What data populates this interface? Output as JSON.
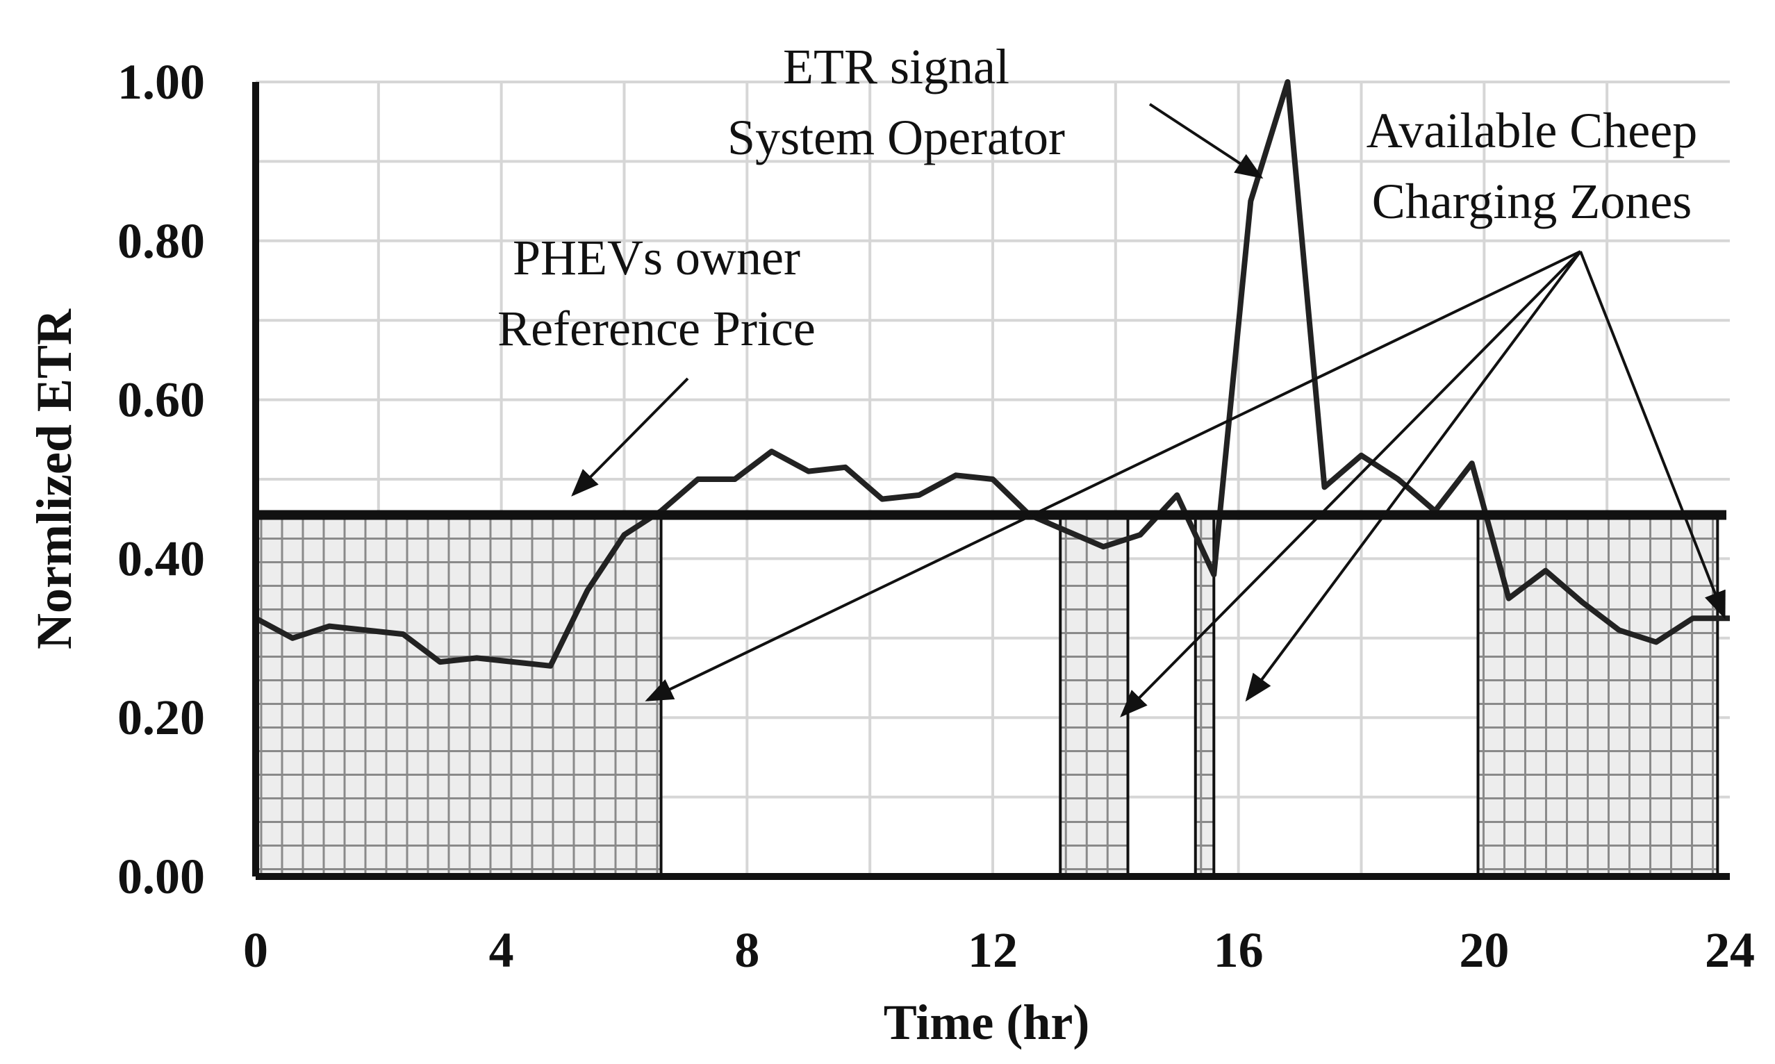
{
  "chart_data": {
    "type": "line",
    "xlabel": "Time  (hr)",
    "ylabel": "Normlized  ETR",
    "xlim": [
      0,
      24
    ],
    "ylim": [
      0,
      1.0
    ],
    "x_ticks": [
      "0",
      "4",
      "8",
      "12",
      "16",
      "20",
      "24"
    ],
    "y_ticks": [
      "0.00",
      "0.20",
      "0.40",
      "0.60",
      "0.80",
      "1.00"
    ],
    "grid": true,
    "series": [
      {
        "x": [
          0,
          0.6,
          1.2,
          1.8,
          2.4,
          3.0,
          3.6,
          4.2,
          4.8,
          5.4,
          6.0,
          6.6,
          7.2,
          7.8,
          8.4,
          9.0,
          9.6,
          10.2,
          10.8,
          11.4,
          12.0,
          12.6,
          13.2,
          13.8,
          14.4,
          15.0,
          15.6,
          16.2,
          16.8,
          17.4,
          18.0,
          18.6,
          19.2,
          19.8,
          20.4,
          21.0,
          21.6,
          22.2,
          22.8,
          23.4,
          24.0
        ],
        "values": [
          0.325,
          0.3,
          0.315,
          0.31,
          0.305,
          0.27,
          0.275,
          0.27,
          0.265,
          0.36,
          0.43,
          0.46,
          0.5,
          0.5,
          0.535,
          0.51,
          0.515,
          0.475,
          0.48,
          0.505,
          0.5,
          0.455,
          0.435,
          0.415,
          0.43,
          0.48,
          0.38,
          0.85,
          1.0,
          0.49,
          0.53,
          0.5,
          0.46,
          0.52,
          0.35,
          0.385,
          0.345,
          0.31,
          0.295,
          0.325,
          0.325
        ]
      },
      {
        "x": [
          0,
          24
        ],
        "values": [
          0.455,
          0.455
        ]
      }
    ],
    "reference_price": 0.455,
    "cheap_zones": [
      [
        0,
        6.6
      ],
      [
        13.1,
        14.2
      ],
      [
        15.3,
        15.6
      ],
      [
        19.9,
        23.8
      ]
    ],
    "annotations": [
      {
        "lines": [
          "ETR signal",
          "System Operator"
        ]
      },
      {
        "lines": [
          "PHEVs owner",
          "Reference Price"
        ]
      },
      {
        "lines": [
          "Available Cheep",
          "Charging Zones"
        ]
      }
    ]
  }
}
